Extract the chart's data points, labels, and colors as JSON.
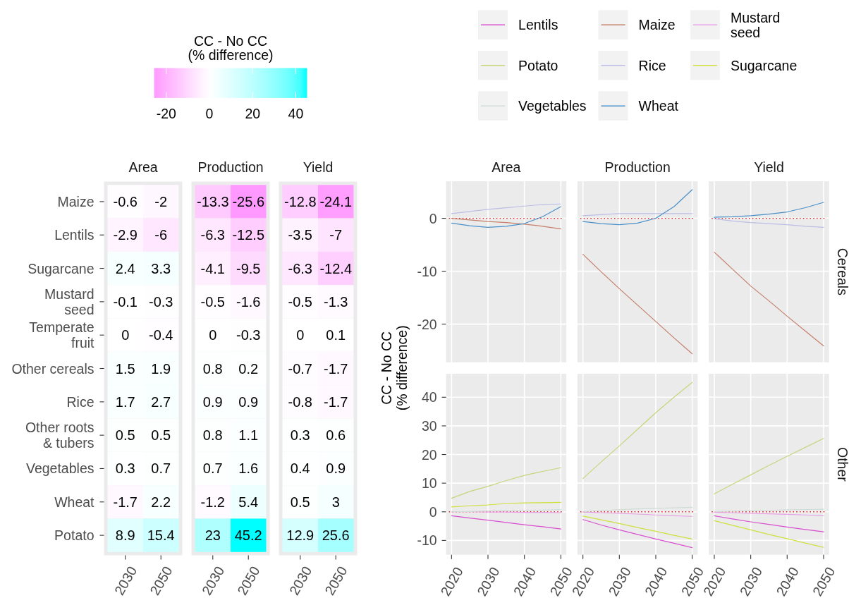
{
  "chart_data": [
    {
      "type": "heatmap",
      "title": "Area",
      "categories": [
        "2030",
        "2050"
      ],
      "y_categories": [
        "Maize",
        "Lentils",
        "Sugarcane",
        "Mustard\nseed",
        "Temperate\nfruit",
        "Other cereals",
        "Rice",
        "Other roots\n& tubers",
        "Vegetables",
        "Wheat",
        "Potato"
      ],
      "cells": [
        [
          -0.6,
          -2
        ],
        [
          -2.9,
          -6
        ],
        [
          2.4,
          3.3
        ],
        [
          -0.1,
          -0.3
        ],
        [
          0,
          -0.4
        ],
        [
          1.5,
          1.9
        ],
        [
          1.7,
          2.7
        ],
        [
          0.5,
          0.5
        ],
        [
          0.3,
          0.7
        ],
        [
          -1.7,
          2.2
        ],
        [
          8.9,
          15.4
        ]
      ],
      "data_labels": true,
      "clabel": "CC - No CC\n(% difference)",
      "clim": [
        -25.6,
        45.2
      ],
      "cticks": [
        -20,
        0,
        20,
        40
      ]
    },
    {
      "type": "heatmap",
      "title": "Production",
      "categories": [
        "2030",
        "2050"
      ],
      "y_categories": [
        null,
        null,
        null,
        null,
        null,
        null,
        null,
        null,
        null,
        null,
        null
      ],
      "cells": [
        [
          -13.3,
          -25.6
        ],
        [
          -6.3,
          -12.5
        ],
        [
          -4.1,
          -9.5
        ],
        [
          -0.5,
          -1.6
        ],
        [
          0,
          -0.3
        ],
        [
          0.8,
          0.2
        ],
        [
          0.9,
          0.9
        ],
        [
          0.8,
          1.1
        ],
        [
          0.7,
          1.6
        ],
        [
          -1.2,
          5.4
        ],
        [
          23,
          45.2
        ]
      ],
      "data_labels": true,
      "tick_labels": "x"
    },
    {
      "type": "heatmap",
      "title": "Yield",
      "categories": [
        "2030",
        "2050"
      ],
      "y_categories": [
        null,
        null,
        null,
        null,
        null,
        null,
        null,
        null,
        null,
        null,
        null
      ],
      "cells": [
        [
          -12.8,
          -24.1
        ],
        [
          -3.5,
          -7
        ],
        [
          -6.3,
          -12.4
        ],
        [
          -0.5,
          -1.3
        ],
        [
          0,
          0.1
        ],
        [
          -0.7,
          -1.7
        ],
        [
          -0.8,
          -1.7
        ],
        [
          0.3,
          0.6
        ],
        [
          0.4,
          0.9
        ],
        [
          0.5,
          3
        ],
        [
          12.9,
          25.6
        ]
      ],
      "data_labels": true,
      "tick_labels": "x"
    },
    {
      "type": "line",
      "title": "Area",
      "ylabel": "CC - No CC\n(% difference)",
      "legend": "top",
      "tick_labels": "y",
      "grid": true,
      "x": [
        2020,
        2025,
        2030,
        2035,
        2040,
        2045,
        2050
      ],
      "xlim": [
        2018.5,
        2051.5
      ],
      "xticks": [
        2020,
        2030,
        2040,
        2050
      ],
      "ylim": [
        -27.2,
        7
      ],
      "yticks": [
        -20,
        -10,
        0
      ],
      "ref_lines": [
        {
          "axis": "y",
          "value": 0,
          "color": "#e8191c",
          "line_style": "dotted"
        }
      ],
      "series": [
        {
          "name": "Maize",
          "color": "#c47f6a",
          "values": [
            0,
            -0.3,
            -0.6,
            -0.8,
            -1.1,
            -1.5,
            -2
          ]
        },
        {
          "name": "Rice",
          "color": "#bdbde6",
          "values": [
            0.9,
            1.3,
            1.7,
            2.0,
            2.3,
            2.6,
            2.7
          ]
        },
        {
          "name": "Wheat",
          "color": "#4a90c8",
          "values": [
            -0.9,
            -1.4,
            -1.7,
            -1.5,
            -1.0,
            0.3,
            2.2
          ]
        }
      ]
    },
    {
      "type": "line",
      "title": "Production",
      "tick_labels": false,
      "grid": true,
      "x": [
        2020,
        2025,
        2030,
        2035,
        2040,
        2045,
        2050
      ],
      "xlim": [
        2018.5,
        2051.5
      ],
      "xticks": [
        2020,
        2030,
        2040,
        2050
      ],
      "ylim": [
        -27.2,
        7
      ],
      "yticks": [
        -20,
        -10,
        0
      ],
      "ref_lines": [
        {
          "axis": "y",
          "value": 0,
          "color": "#e8191c",
          "line_style": "dotted"
        }
      ],
      "series": [
        {
          "color": "#c47f6a",
          "values": [
            -6.8,
            -10.1,
            -13.3,
            -16.4,
            -19.5,
            -22.6,
            -25.6
          ]
        },
        {
          "color": "#bdbde6",
          "values": [
            0.5,
            0.7,
            0.9,
            0.9,
            0.9,
            0.9,
            0.9
          ]
        },
        {
          "color": "#4a90c8",
          "values": [
            -0.6,
            -1.0,
            -1.2,
            -0.9,
            0.0,
            2.2,
            5.4
          ]
        }
      ]
    },
    {
      "type": "line",
      "title": "Yield",
      "tick_labels": false,
      "annotations": [
        "Cereals"
      ],
      "grid": true,
      "x": [
        2020,
        2025,
        2030,
        2035,
        2040,
        2045,
        2050
      ],
      "xlim": [
        2018.5,
        2051.5
      ],
      "xticks": [
        2020,
        2030,
        2040,
        2050
      ],
      "ylim": [
        -27.2,
        7
      ],
      "yticks": [
        -20,
        -10,
        0
      ],
      "ref_lines": [
        {
          "axis": "y",
          "value": 0,
          "color": "#e8191c",
          "line_style": "dotted"
        }
      ],
      "series": [
        {
          "color": "#c47f6a",
          "values": [
            -6.4,
            -9.6,
            -12.8,
            -15.6,
            -18.5,
            -21.3,
            -24.1
          ]
        },
        {
          "color": "#bdbde6",
          "values": [
            -0.1,
            -0.5,
            -0.8,
            -1.0,
            -1.2,
            -1.5,
            -1.7
          ]
        },
        {
          "color": "#4a90c8",
          "values": [
            0.2,
            0.3,
            0.5,
            0.8,
            1.2,
            2.0,
            3
          ]
        }
      ]
    },
    {
      "type": "line",
      "legend": "top",
      "grid": true,
      "x": [
        2020,
        2025,
        2030,
        2035,
        2040,
        2045,
        2050
      ],
      "xlim": [
        2018.5,
        2051.5
      ],
      "xticks": [
        2020,
        2030,
        2040,
        2050
      ],
      "ylim": [
        -15,
        48.2
      ],
      "yticks": [
        -10,
        0,
        10,
        20,
        30,
        40
      ],
      "ref_lines": [
        {
          "axis": "y",
          "value": 0,
          "color": "#e8191c",
          "line_style": "dotted"
        }
      ],
      "series": [
        {
          "name": "Lentils",
          "color": "#d84fd0",
          "values": [
            -1.4,
            -2.2,
            -2.9,
            -3.7,
            -4.5,
            -5.2,
            -6
          ]
        },
        {
          "name": "Mustard\nseed",
          "color": "#e8a0e4",
          "values": [
            0,
            0,
            -0.1,
            -0.1,
            -0.2,
            -0.2,
            -0.3
          ]
        },
        {
          "name": "Potato",
          "color": "#c5d67a",
          "values": [
            4.7,
            7.1,
            8.9,
            10.9,
            12.7,
            14.1,
            15.4
          ]
        },
        {
          "name": "Sugarcane",
          "color": "#cfe03c",
          "values": [
            1.7,
            2.1,
            2.4,
            2.9,
            3.1,
            3.2,
            3.3
          ]
        },
        {
          "name": "Vegetables",
          "color": "#cfdcd8",
          "values": [
            0,
            0.1,
            0.3,
            0.4,
            0.5,
            0.6,
            0.7
          ]
        }
      ]
    },
    {
      "type": "line",
      "tick_labels": "x",
      "grid": true,
      "x": [
        2020,
        2025,
        2030,
        2035,
        2040,
        2045,
        2050
      ],
      "xlim": [
        2018.5,
        2051.5
      ],
      "xticks": [
        2020,
        2030,
        2040,
        2050
      ],
      "ylim": [
        -15,
        48.2
      ],
      "yticks": [
        -10,
        0,
        10,
        20,
        30,
        40
      ],
      "ref_lines": [
        {
          "axis": "y",
          "value": 0,
          "color": "#e8191c",
          "line_style": "dotted"
        }
      ],
      "series": [
        {
          "color": "#d84fd0",
          "values": [
            -2.7,
            -4.6,
            -6.3,
            -7.9,
            -9.5,
            -11,
            -12.5
          ]
        },
        {
          "color": "#e8a0e4",
          "values": [
            -0.1,
            -0.3,
            -0.5,
            -0.8,
            -1.1,
            -1.4,
            -1.6
          ]
        },
        {
          "color": "#c5d67a",
          "values": [
            11.6,
            17.4,
            23,
            28.8,
            34.6,
            40,
            45.2
          ]
        },
        {
          "color": "#cfe03c",
          "values": [
            -1.5,
            -2.8,
            -4.1,
            -5.5,
            -6.8,
            -8.2,
            -9.5
          ]
        },
        {
          "color": "#cfdcd8",
          "values": [
            0.1,
            0.4,
            0.7,
            1,
            1.2,
            1.4,
            1.6
          ]
        }
      ]
    },
    {
      "type": "line",
      "tick_labels": "x",
      "annotations": [
        "Other"
      ],
      "grid": true,
      "x": [
        2020,
        2025,
        2030,
        2035,
        2040,
        2045,
        2050
      ],
      "xlim": [
        2018.5,
        2051.5
      ],
      "xticks": [
        2020,
        2030,
        2040,
        2050
      ],
      "ylim": [
        -15,
        48.2
      ],
      "yticks": [
        -10,
        0,
        10,
        20,
        30,
        40
      ],
      "ref_lines": [
        {
          "axis": "y",
          "value": 0,
          "color": "#e8191c",
          "line_style": "dotted"
        }
      ],
      "series": [
        {
          "color": "#d84fd0",
          "values": [
            -1.4,
            -2.5,
            -3.5,
            -4.4,
            -5.3,
            -6.2,
            -7
          ]
        },
        {
          "color": "#e8a0e4",
          "values": [
            -0.1,
            -0.3,
            -0.5,
            -0.7,
            -0.9,
            -1.1,
            -1.3
          ]
        },
        {
          "color": "#c5d67a",
          "values": [
            6.3,
            9.6,
            12.9,
            16.2,
            19.4,
            22.5,
            25.6
          ]
        },
        {
          "color": "#cfe03c",
          "values": [
            -3.1,
            -4.7,
            -6.3,
            -7.9,
            -9.4,
            -10.9,
            -12.4
          ]
        },
        {
          "color": "#cfdcd8",
          "values": [
            0.1,
            0.2,
            0.4,
            0.5,
            0.7,
            0.8,
            0.9
          ]
        }
      ]
    }
  ]
}
